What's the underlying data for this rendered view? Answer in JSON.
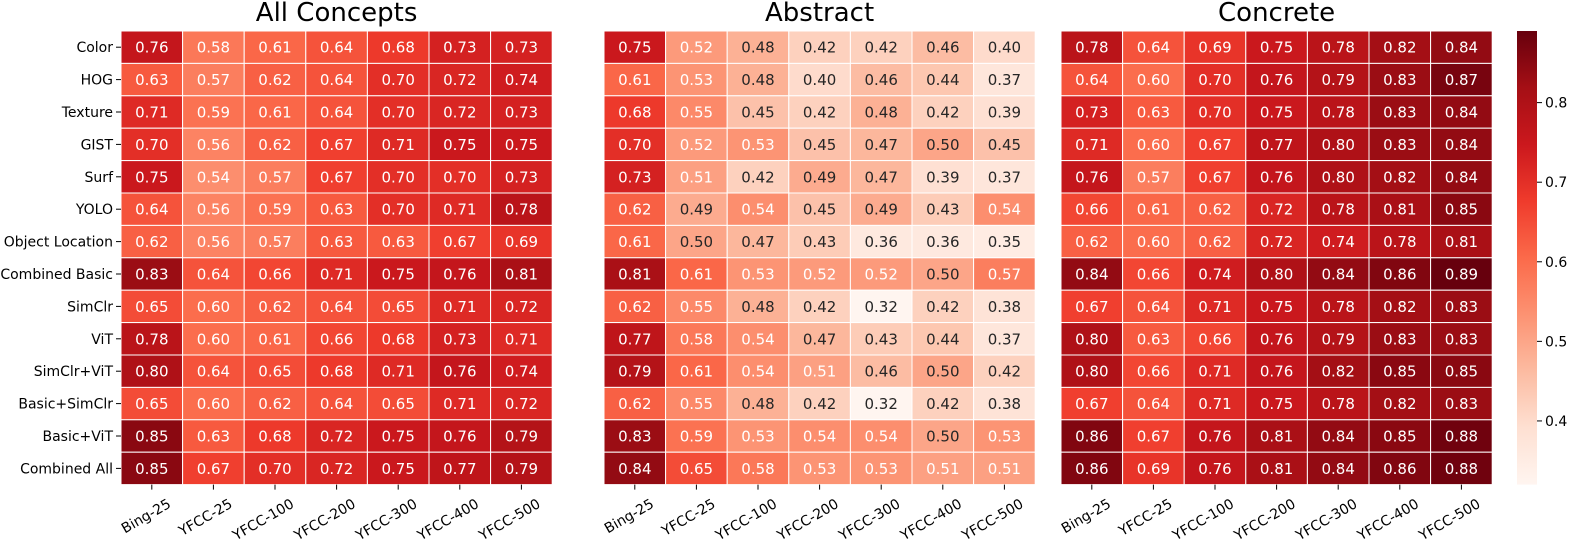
{
  "chart_data": {
    "type": "heatmap",
    "rows": [
      "Color",
      "HOG",
      "Texture",
      "GIST",
      "Surf",
      "YOLO",
      "Object Location",
      "Combined Basic",
      "SimClr",
      "ViT",
      "SimClr+ViT",
      "Basic+SimClr",
      "Basic+ViT",
      "Combined All"
    ],
    "columns": [
      "Bing-25",
      "YFCC-25",
      "YFCC-100",
      "YFCC-200",
      "YFCC-300",
      "YFCC-400",
      "YFCC-500"
    ],
    "color_scale": {
      "min": 0.32,
      "max": 0.89,
      "low_color": "#fff5f0",
      "high_color": "#67000d",
      "ticks": [
        "0.4",
        "0.5",
        "0.6",
        "0.7",
        "0.8"
      ]
    },
    "panels": [
      {
        "title": "All Concepts",
        "values": [
          [
            0.76,
            0.58,
            0.61,
            0.64,
            0.68,
            0.73,
            0.73
          ],
          [
            0.63,
            0.57,
            0.62,
            0.64,
            0.7,
            0.72,
            0.74
          ],
          [
            0.71,
            0.59,
            0.61,
            0.64,
            0.7,
            0.72,
            0.73
          ],
          [
            0.7,
            0.56,
            0.62,
            0.67,
            0.71,
            0.75,
            0.75
          ],
          [
            0.75,
            0.54,
            0.57,
            0.67,
            0.7,
            0.7,
            0.73
          ],
          [
            0.64,
            0.56,
            0.59,
            0.63,
            0.7,
            0.71,
            0.78
          ],
          [
            0.62,
            0.56,
            0.57,
            0.63,
            0.63,
            0.67,
            0.69
          ],
          [
            0.83,
            0.64,
            0.66,
            0.71,
            0.75,
            0.76,
            0.81
          ],
          [
            0.65,
            0.6,
            0.62,
            0.64,
            0.65,
            0.71,
            0.72
          ],
          [
            0.78,
            0.6,
            0.61,
            0.66,
            0.68,
            0.73,
            0.71
          ],
          [
            0.8,
            0.64,
            0.65,
            0.68,
            0.71,
            0.76,
            0.74
          ],
          [
            0.65,
            0.6,
            0.62,
            0.64,
            0.65,
            0.71,
            0.72
          ],
          [
            0.85,
            0.63,
            0.68,
            0.72,
            0.75,
            0.76,
            0.79
          ],
          [
            0.85,
            0.67,
            0.7,
            0.72,
            0.75,
            0.77,
            0.79
          ]
        ]
      },
      {
        "title": "Abstract",
        "values": [
          [
            0.75,
            0.52,
            0.48,
            0.42,
            0.42,
            0.46,
            0.4
          ],
          [
            0.61,
            0.53,
            0.48,
            0.4,
            0.46,
            0.44,
            0.37
          ],
          [
            0.68,
            0.55,
            0.45,
            0.42,
            0.48,
            0.42,
            0.39
          ],
          [
            0.7,
            0.52,
            0.53,
            0.45,
            0.47,
            0.5,
            0.45
          ],
          [
            0.73,
            0.51,
            0.42,
            0.49,
            0.47,
            0.39,
            0.37
          ],
          [
            0.62,
            0.49,
            0.54,
            0.45,
            0.49,
            0.43,
            0.54
          ],
          [
            0.61,
            0.5,
            0.47,
            0.43,
            0.36,
            0.36,
            0.35
          ],
          [
            0.81,
            0.61,
            0.53,
            0.52,
            0.52,
            0.5,
            0.57
          ],
          [
            0.62,
            0.55,
            0.48,
            0.42,
            0.32,
            0.42,
            0.38
          ],
          [
            0.77,
            0.58,
            0.54,
            0.47,
            0.43,
            0.44,
            0.37
          ],
          [
            0.79,
            0.61,
            0.54,
            0.51,
            0.46,
            0.5,
            0.42
          ],
          [
            0.62,
            0.55,
            0.48,
            0.42,
            0.32,
            0.42,
            0.38
          ],
          [
            0.83,
            0.59,
            0.53,
            0.54,
            0.54,
            0.5,
            0.53
          ],
          [
            0.84,
            0.65,
            0.58,
            0.53,
            0.53,
            0.51,
            0.51
          ]
        ]
      },
      {
        "title": "Concrete",
        "values": [
          [
            0.78,
            0.64,
            0.69,
            0.75,
            0.78,
            0.82,
            0.84
          ],
          [
            0.64,
            0.6,
            0.7,
            0.76,
            0.79,
            0.83,
            0.87
          ],
          [
            0.73,
            0.63,
            0.7,
            0.75,
            0.78,
            0.83,
            0.84
          ],
          [
            0.71,
            0.6,
            0.67,
            0.77,
            0.8,
            0.83,
            0.84
          ],
          [
            0.76,
            0.57,
            0.67,
            0.76,
            0.8,
            0.82,
            0.84
          ],
          [
            0.66,
            0.61,
            0.62,
            0.72,
            0.78,
            0.81,
            0.85
          ],
          [
            0.62,
            0.6,
            0.62,
            0.72,
            0.74,
            0.78,
            0.81
          ],
          [
            0.84,
            0.66,
            0.74,
            0.8,
            0.84,
            0.86,
            0.89
          ],
          [
            0.67,
            0.64,
            0.71,
            0.75,
            0.78,
            0.82,
            0.83
          ],
          [
            0.8,
            0.63,
            0.66,
            0.76,
            0.79,
            0.83,
            0.83
          ],
          [
            0.8,
            0.66,
            0.71,
            0.76,
            0.82,
            0.85,
            0.85
          ],
          [
            0.67,
            0.64,
            0.71,
            0.75,
            0.78,
            0.82,
            0.83
          ],
          [
            0.86,
            0.67,
            0.76,
            0.81,
            0.84,
            0.85,
            0.88
          ],
          [
            0.86,
            0.69,
            0.76,
            0.81,
            0.84,
            0.86,
            0.88
          ]
        ]
      }
    ]
  }
}
